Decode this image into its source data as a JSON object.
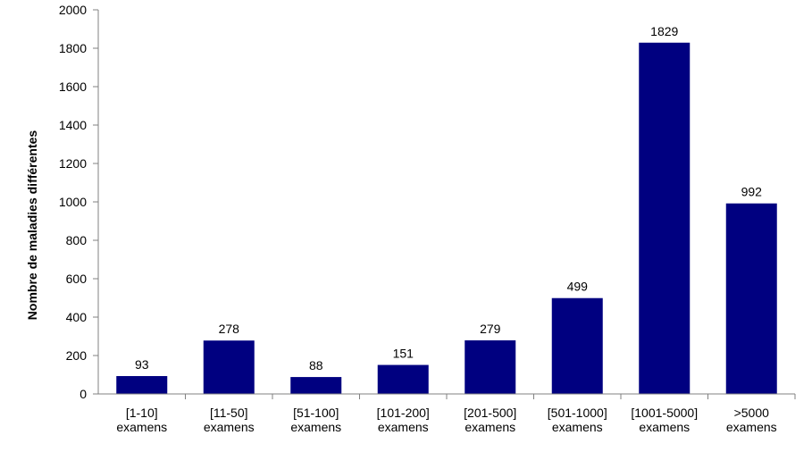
{
  "chart_data": {
    "type": "bar",
    "categories": [
      [
        "[1-10]",
        "examens"
      ],
      [
        "[11-50]",
        "examens"
      ],
      [
        "[51-100]",
        "examens"
      ],
      [
        "[101-200]",
        "examens"
      ],
      [
        "[201-500]",
        "examens"
      ],
      [
        "[501-1000]",
        "examens"
      ],
      [
        "[1001-5000]",
        "examens"
      ],
      [
        ">5000",
        "examens"
      ]
    ],
    "values": [
      93,
      278,
      88,
      151,
      279,
      499,
      1829,
      992
    ],
    "data_labels": [
      "93",
      "278",
      "88",
      "151",
      "279",
      "499",
      "1829",
      "992"
    ],
    "title": "",
    "xlabel": "",
    "ylabel": "Nombre de maladies différentes",
    "ylim": [
      0,
      2000
    ],
    "yticks": [
      0,
      200,
      400,
      600,
      800,
      1000,
      1200,
      1400,
      1600,
      1800,
      2000
    ],
    "ytick_labels": [
      "0",
      "200",
      "400",
      "600",
      "800",
      "1000",
      "1200",
      "1400",
      "1600",
      "1800",
      "2000"
    ],
    "grid": false,
    "legend": "none",
    "colors": {
      "bar": "#000080",
      "axis": "#808080",
      "text": "#000000"
    }
  }
}
